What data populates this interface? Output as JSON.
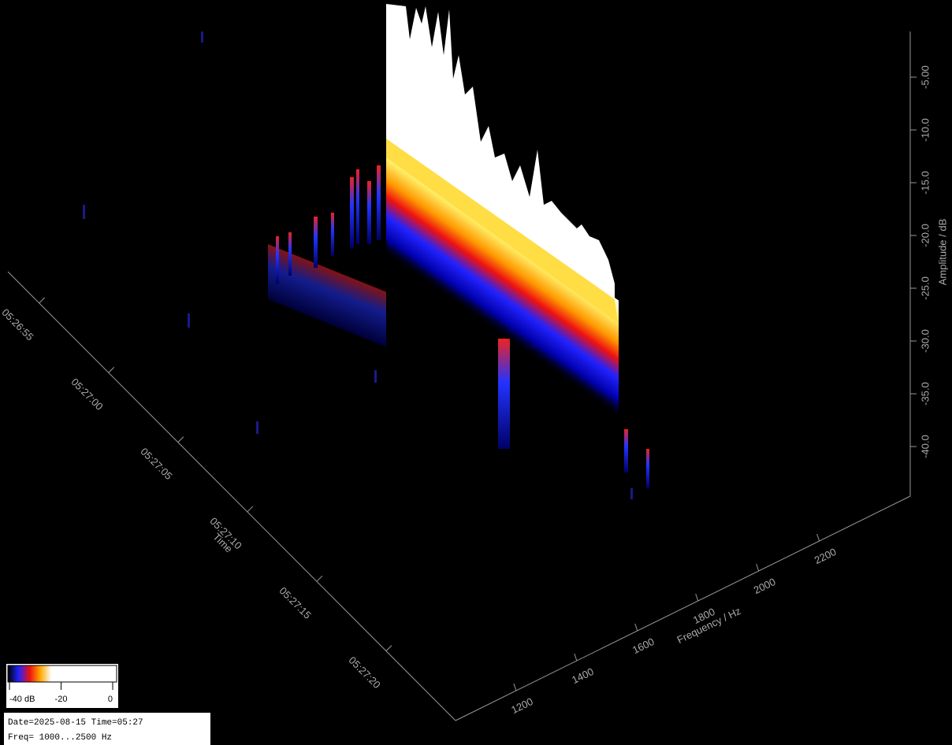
{
  "chart_data": {
    "type": "waterfall3d",
    "y_label": "Amplitude / dB",
    "x_label": "Frequency / Hz",
    "z_label": "Time",
    "ylim": [
      -45,
      0
    ],
    "yticks": [
      {
        "value": -5,
        "label": "-5.00"
      },
      {
        "value": -10,
        "label": "-10.0"
      },
      {
        "value": -15,
        "label": "-15.0"
      },
      {
        "value": -20,
        "label": "-20.0"
      },
      {
        "value": -25,
        "label": "-25.0"
      },
      {
        "value": -30,
        "label": "-30.0"
      },
      {
        "value": -35,
        "label": "-35.0"
      },
      {
        "value": -40,
        "label": "-40.0"
      }
    ],
    "xlim": [
      1000,
      2500
    ],
    "xticks": [
      1200,
      1400,
      1600,
      1800,
      2000,
      2200
    ],
    "zticks": [
      "05:26:55",
      "05:27:00",
      "05:27:05",
      "05:27:10",
      "05:27:15",
      "05:27:20"
    ],
    "clim": [
      -40,
      0
    ],
    "cticks": [
      {
        "value": -40,
        "label": "-40 dB"
      },
      -20,
      0
    ],
    "info": [
      "Date=2025-08-15 Time=05:27",
      "Freq= 1000...2500 Hz"
    ]
  }
}
